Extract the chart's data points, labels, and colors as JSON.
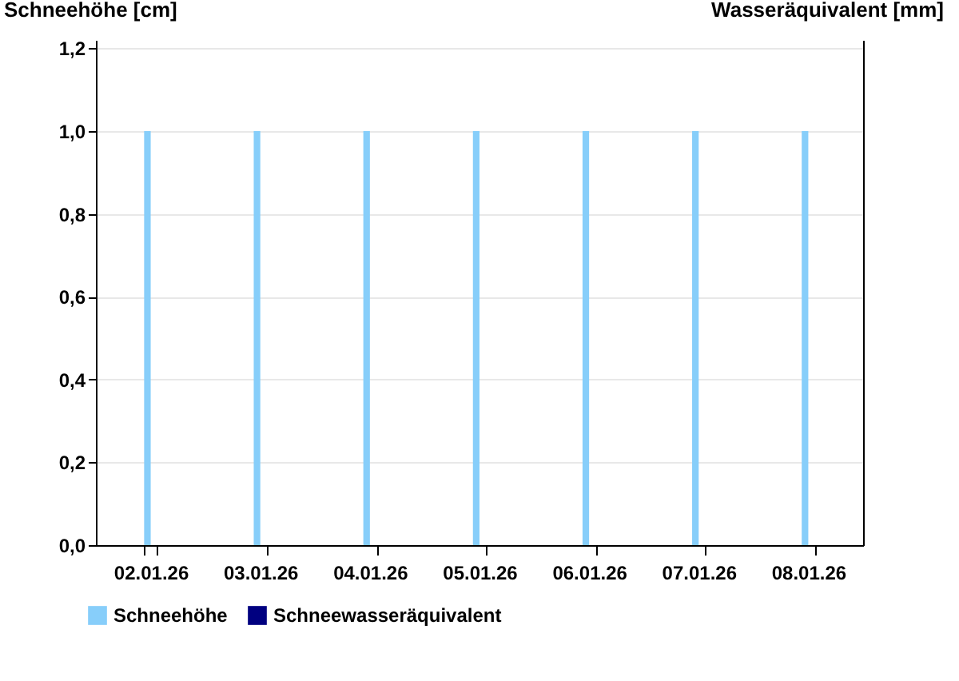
{
  "chart_data": {
    "type": "bar",
    "ylabel": "Schneehöhe [cm]",
    "y2label": "Wasseräquivalent [mm]",
    "categories": [
      "02.01.26",
      "03.01.26",
      "04.01.26",
      "05.01.26",
      "06.01.26",
      "07.01.26",
      "08.01.26"
    ],
    "series": [
      {
        "name": "Schneehöhe",
        "color": "#87cefa",
        "values": [
          1,
          1,
          1,
          1,
          1,
          1,
          1
        ]
      },
      {
        "name": "Schneewasseräquivalent",
        "color": "#000080",
        "axis": "y2",
        "values": [
          null,
          null,
          null,
          null,
          null,
          null,
          null
        ]
      }
    ],
    "ylim": [
      0,
      1.22
    ],
    "yticks": [
      {
        "value": 0,
        "label": "0,0"
      },
      {
        "value": 0.2,
        "label": "0,2"
      },
      {
        "value": 0.4,
        "label": "0,4"
      },
      {
        "value": 0.6,
        "label": "0,6"
      },
      {
        "value": 0.8,
        "label": "0,8"
      },
      {
        "value": 1,
        "label": "1,0"
      },
      {
        "value": 1.2,
        "label": "1,2"
      }
    ],
    "grid": "y",
    "legend": "bottom left"
  }
}
